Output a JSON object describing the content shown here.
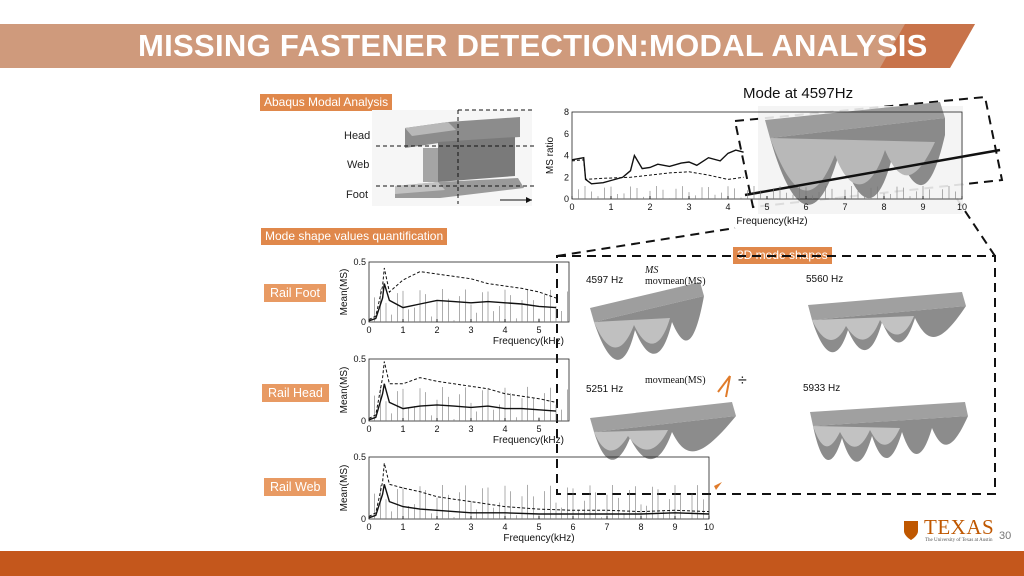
{
  "title": "MISSING FASTENER DETECTION:MODAL ANALYSIS",
  "colors": {
    "banner": "#c9805a",
    "accent": "#e0884b",
    "footer": "#c4571c",
    "texas": "#bf5700"
  },
  "tags": {
    "abaqus": "Abaqus Modal Analysis",
    "quantification": "Mode shape values quantification",
    "shapes3d": "3D mode shapes"
  },
  "rail_labels": {
    "head": "Head",
    "web": "Web",
    "foot": "Foot"
  },
  "rail_tags": {
    "foot": "Rail Foot",
    "head": "Rail Head",
    "web": "Rail Web"
  },
  "mode_label": "Mode at 4597Hz",
  "mode_freqs": {
    "m1": "4597 Hz",
    "m2": "5560 Hz",
    "m3": "5251 Hz",
    "m4": "5933 Hz"
  },
  "legend": {
    "ms": "MS",
    "movmean": "movmean(MS)"
  },
  "divide_symbol": "÷",
  "logo": {
    "word": "TEXAS",
    "sub": "The University of Texas at Austin"
  },
  "page_number": "30",
  "chart_data": [
    {
      "type": "line",
      "xlabel": "Frequency(kHz)",
      "ylabel": "MS ratio",
      "xlim": [
        0,
        10
      ],
      "ylim": [
        0,
        8
      ],
      "xticks": [
        0,
        1,
        2,
        3,
        4,
        5,
        6,
        7,
        8,
        9,
        10
      ],
      "yticks": [
        0,
        2,
        4,
        6,
        8
      ],
      "series": [
        {
          "style": "solid",
          "x": [
            0,
            0.3,
            0.35,
            0.5,
            0.8,
            1.0,
            1.3,
            1.5,
            1.6,
            1.8,
            2.0,
            2.2,
            2.5,
            2.8,
            3.0,
            3.2,
            3.5,
            3.8,
            4.0,
            4.2,
            4.4
          ],
          "y": [
            3.6,
            3.8,
            1.8,
            1.4,
            1.5,
            1.7,
            2.0,
            2.6,
            4.0,
            2.8,
            2.9,
            3.2,
            3.0,
            3.3,
            3.4,
            3.1,
            3.8,
            3.5,
            4.2,
            4.5,
            4.3
          ]
        },
        {
          "style": "dashed",
          "x": [
            0,
            0.3,
            0.35,
            0.8,
            1.5,
            2.0,
            2.5,
            3.0,
            3.5,
            4.0,
            4.4
          ],
          "y": [
            3.5,
            3.6,
            1.8,
            1.9,
            2.0,
            2.2,
            2.4,
            2.5,
            2.2,
            1.8,
            2.0
          ]
        }
      ]
    },
    {
      "type": "line",
      "name": "Rail Foot",
      "xlabel": "Frequency(kHz)",
      "ylabel": "Mean(MS)",
      "xlim": [
        0,
        10
      ],
      "ylim": [
        0,
        0.5
      ],
      "xticks": [
        0,
        1,
        2,
        3,
        4,
        5
      ],
      "yticks": [
        0,
        0.5
      ],
      "series": [
        {
          "style": "dashed",
          "x": [
            0,
            0.2,
            0.4,
            0.45,
            0.6,
            1.0,
            1.5,
            2.0,
            2.5,
            3.0,
            3.5,
            4.0,
            4.5,
            5.0,
            5.5
          ],
          "y": [
            0.02,
            0.05,
            0.3,
            0.45,
            0.25,
            0.35,
            0.42,
            0.4,
            0.38,
            0.36,
            0.32,
            0.3,
            0.28,
            0.25,
            0.2
          ]
        },
        {
          "style": "solid",
          "x": [
            0,
            0.2,
            0.4,
            0.45,
            0.6,
            1.0,
            1.5,
            2.0,
            2.5,
            3.0,
            3.5,
            4.0,
            4.5,
            5.0,
            5.5
          ],
          "y": [
            0.01,
            0.03,
            0.2,
            0.32,
            0.18,
            0.12,
            0.15,
            0.18,
            0.17,
            0.16,
            0.17,
            0.16,
            0.15,
            0.13,
            0.12
          ]
        }
      ]
    },
    {
      "type": "line",
      "name": "Rail Head",
      "xlabel": "Frequency(kHz)",
      "ylabel": "Mean(MS)",
      "xlim": [
        0,
        10
      ],
      "ylim": [
        0,
        0.5
      ],
      "xticks": [
        0,
        1,
        2,
        3,
        4,
        5
      ],
      "yticks": [
        0,
        0.5
      ],
      "series": [
        {
          "style": "dashed",
          "x": [
            0,
            0.2,
            0.4,
            0.45,
            0.6,
            1.0,
            1.5,
            2.0,
            2.5,
            3.0,
            3.5,
            4.0,
            4.5,
            5.0,
            5.5
          ],
          "y": [
            0.02,
            0.05,
            0.35,
            0.48,
            0.3,
            0.3,
            0.35,
            0.32,
            0.3,
            0.28,
            0.26,
            0.22,
            0.2,
            0.18,
            0.15
          ]
        },
        {
          "style": "solid",
          "x": [
            0,
            0.2,
            0.4,
            0.45,
            0.6,
            1.0,
            1.5,
            2.0,
            2.5,
            3.0,
            3.5,
            4.0,
            4.5,
            5.0,
            5.5
          ],
          "y": [
            0.01,
            0.03,
            0.22,
            0.3,
            0.15,
            0.1,
            0.12,
            0.13,
            0.12,
            0.11,
            0.12,
            0.1,
            0.1,
            0.09,
            0.08
          ]
        }
      ]
    },
    {
      "type": "line",
      "name": "Rail Web",
      "xlabel": "Frequency(kHz)",
      "ylabel": "Mean(MS)",
      "xlim": [
        0,
        10
      ],
      "ylim": [
        0,
        0.5
      ],
      "xticks": [
        0,
        1,
        2,
        3,
        4,
        5,
        6,
        7,
        8,
        9,
        10
      ],
      "yticks": [
        0,
        0.5
      ],
      "series": [
        {
          "style": "dashed",
          "x": [
            0,
            0.2,
            0.4,
            0.45,
            0.6,
            1.0,
            1.5,
            2.0,
            2.5,
            3.0,
            4.0,
            5.0,
            6.0,
            7.0,
            8.0,
            9.0,
            10.0
          ],
          "y": [
            0.02,
            0.05,
            0.3,
            0.45,
            0.28,
            0.25,
            0.22,
            0.18,
            0.16,
            0.14,
            0.1,
            0.08,
            0.07,
            0.07,
            0.06,
            0.07,
            0.06
          ]
        },
        {
          "style": "solid",
          "x": [
            0,
            0.2,
            0.4,
            0.45,
            0.6,
            1.0,
            1.5,
            2.0,
            2.5,
            3.0,
            4.0,
            5.0,
            6.0,
            7.0,
            8.0,
            9.0,
            10.0
          ],
          "y": [
            0.01,
            0.03,
            0.2,
            0.28,
            0.14,
            0.1,
            0.08,
            0.07,
            0.06,
            0.05,
            0.05,
            0.04,
            0.04,
            0.04,
            0.04,
            0.05,
            0.04
          ]
        }
      ]
    }
  ]
}
